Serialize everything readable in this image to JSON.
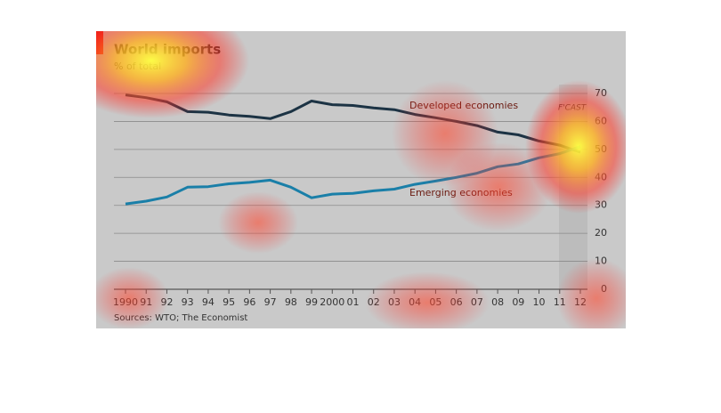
{
  "chart_data": {
    "type": "line",
    "title": "World imports",
    "subtitle": "% of total",
    "annotations": [
      "Developed economies",
      "Emerging economies",
      "F'CAST"
    ],
    "source": "Sources: WTO; The Economist",
    "categories": [
      "1990",
      "91",
      "92",
      "93",
      "94",
      "95",
      "96",
      "97",
      "98",
      "99",
      "2000",
      "01",
      "02",
      "03",
      "04",
      "05",
      "06",
      "07",
      "08",
      "09",
      "10",
      "11",
      "12"
    ],
    "series": [
      {
        "name": "Developed economies",
        "color": "#1c3344",
        "values": [
          69.5,
          68.5,
          67,
          63.5,
          63.3,
          62.3,
          61.8,
          61,
          63.5,
          67.3,
          66,
          65.7,
          64.8,
          64.2,
          62.5,
          61.3,
          60,
          58.5,
          56.2,
          55.2,
          53,
          51.5,
          49
        ]
      },
      {
        "name": "Emerging economies",
        "color": "#1a7fa8",
        "values": [
          30.5,
          31.5,
          33,
          36.5,
          36.7,
          37.7,
          38.2,
          39,
          36.5,
          32.7,
          34,
          34.3,
          35.2,
          35.8,
          37.5,
          38.7,
          40,
          41.5,
          43.8,
          44.8,
          47,
          48.5,
          51
        ]
      }
    ],
    "ylim": [
      0,
      70
    ],
    "yticks": [
      0,
      10,
      20,
      30,
      40,
      50,
      60,
      70
    ],
    "grid": true
  }
}
